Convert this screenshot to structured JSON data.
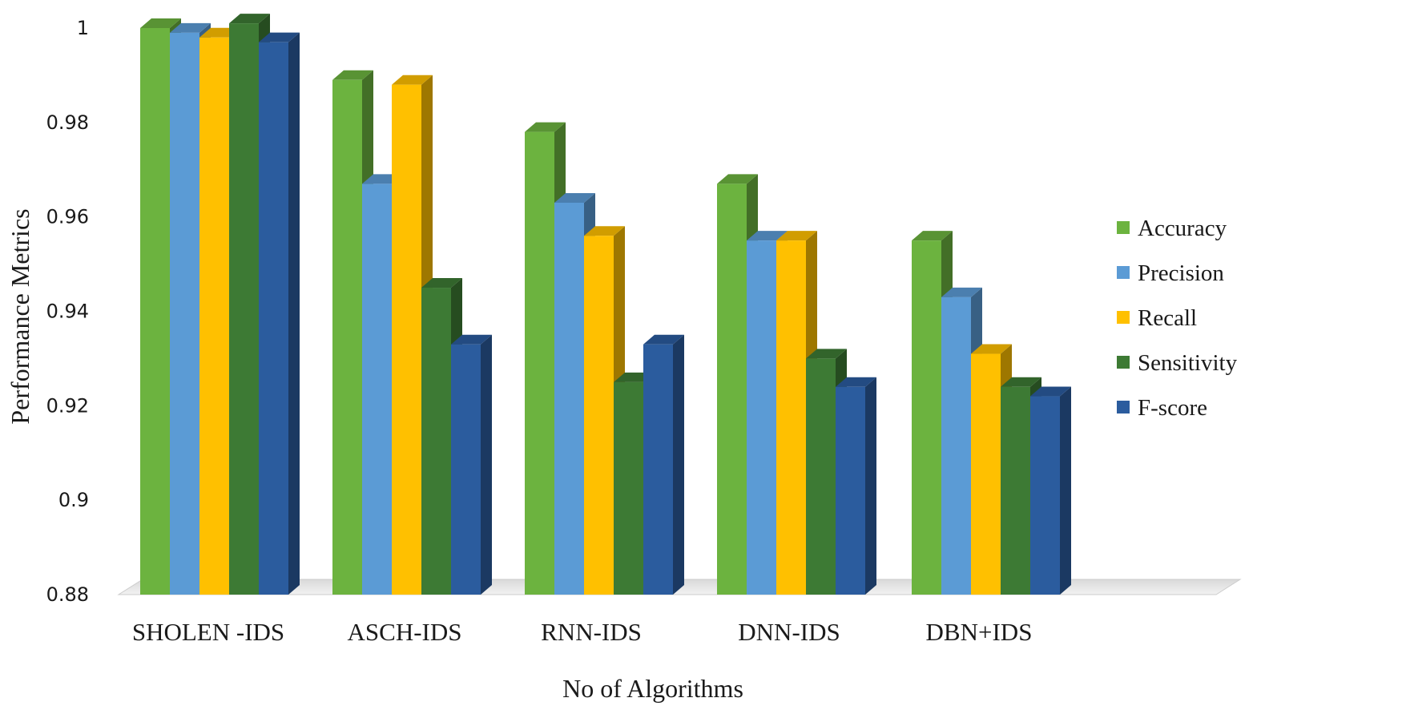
{
  "chart_data": {
    "type": "bar",
    "style": "3d-clustered-column",
    "categories": [
      "SHOLEN -IDS",
      "ASCH-IDS",
      "RNN-IDS",
      "DNN-IDS",
      "DBN+IDS"
    ],
    "series": [
      {
        "name": "Accuracy",
        "color": "#6cb33f",
        "values": [
          1.0,
          0.989,
          0.978,
          0.967,
          0.955
        ]
      },
      {
        "name": "Precision",
        "color": "#5b9bd5",
        "values": [
          0.999,
          0.967,
          0.963,
          0.955,
          0.943
        ]
      },
      {
        "name": "Recall",
        "color": "#ffc000",
        "values": [
          0.998,
          0.988,
          0.956,
          0.955,
          0.931
        ]
      },
      {
        "name": "Sensitivity",
        "color": "#3d7a34",
        "values": [
          1.001,
          0.945,
          0.925,
          0.93,
          0.924
        ]
      },
      {
        "name": "F-score",
        "color": "#2b5c9e",
        "values": [
          0.997,
          0.933,
          0.933,
          0.924,
          0.922
        ]
      }
    ],
    "y_ticks": [
      "0.88",
      "0.9",
      "0.92",
      "0.94",
      "0.96",
      "0.98",
      "1"
    ],
    "ylim": [
      0.88,
      1.0
    ],
    "xlabel": "No of Algorithms",
    "ylabel": "Performance Metrics",
    "legend_position": "right",
    "grid": false
  }
}
